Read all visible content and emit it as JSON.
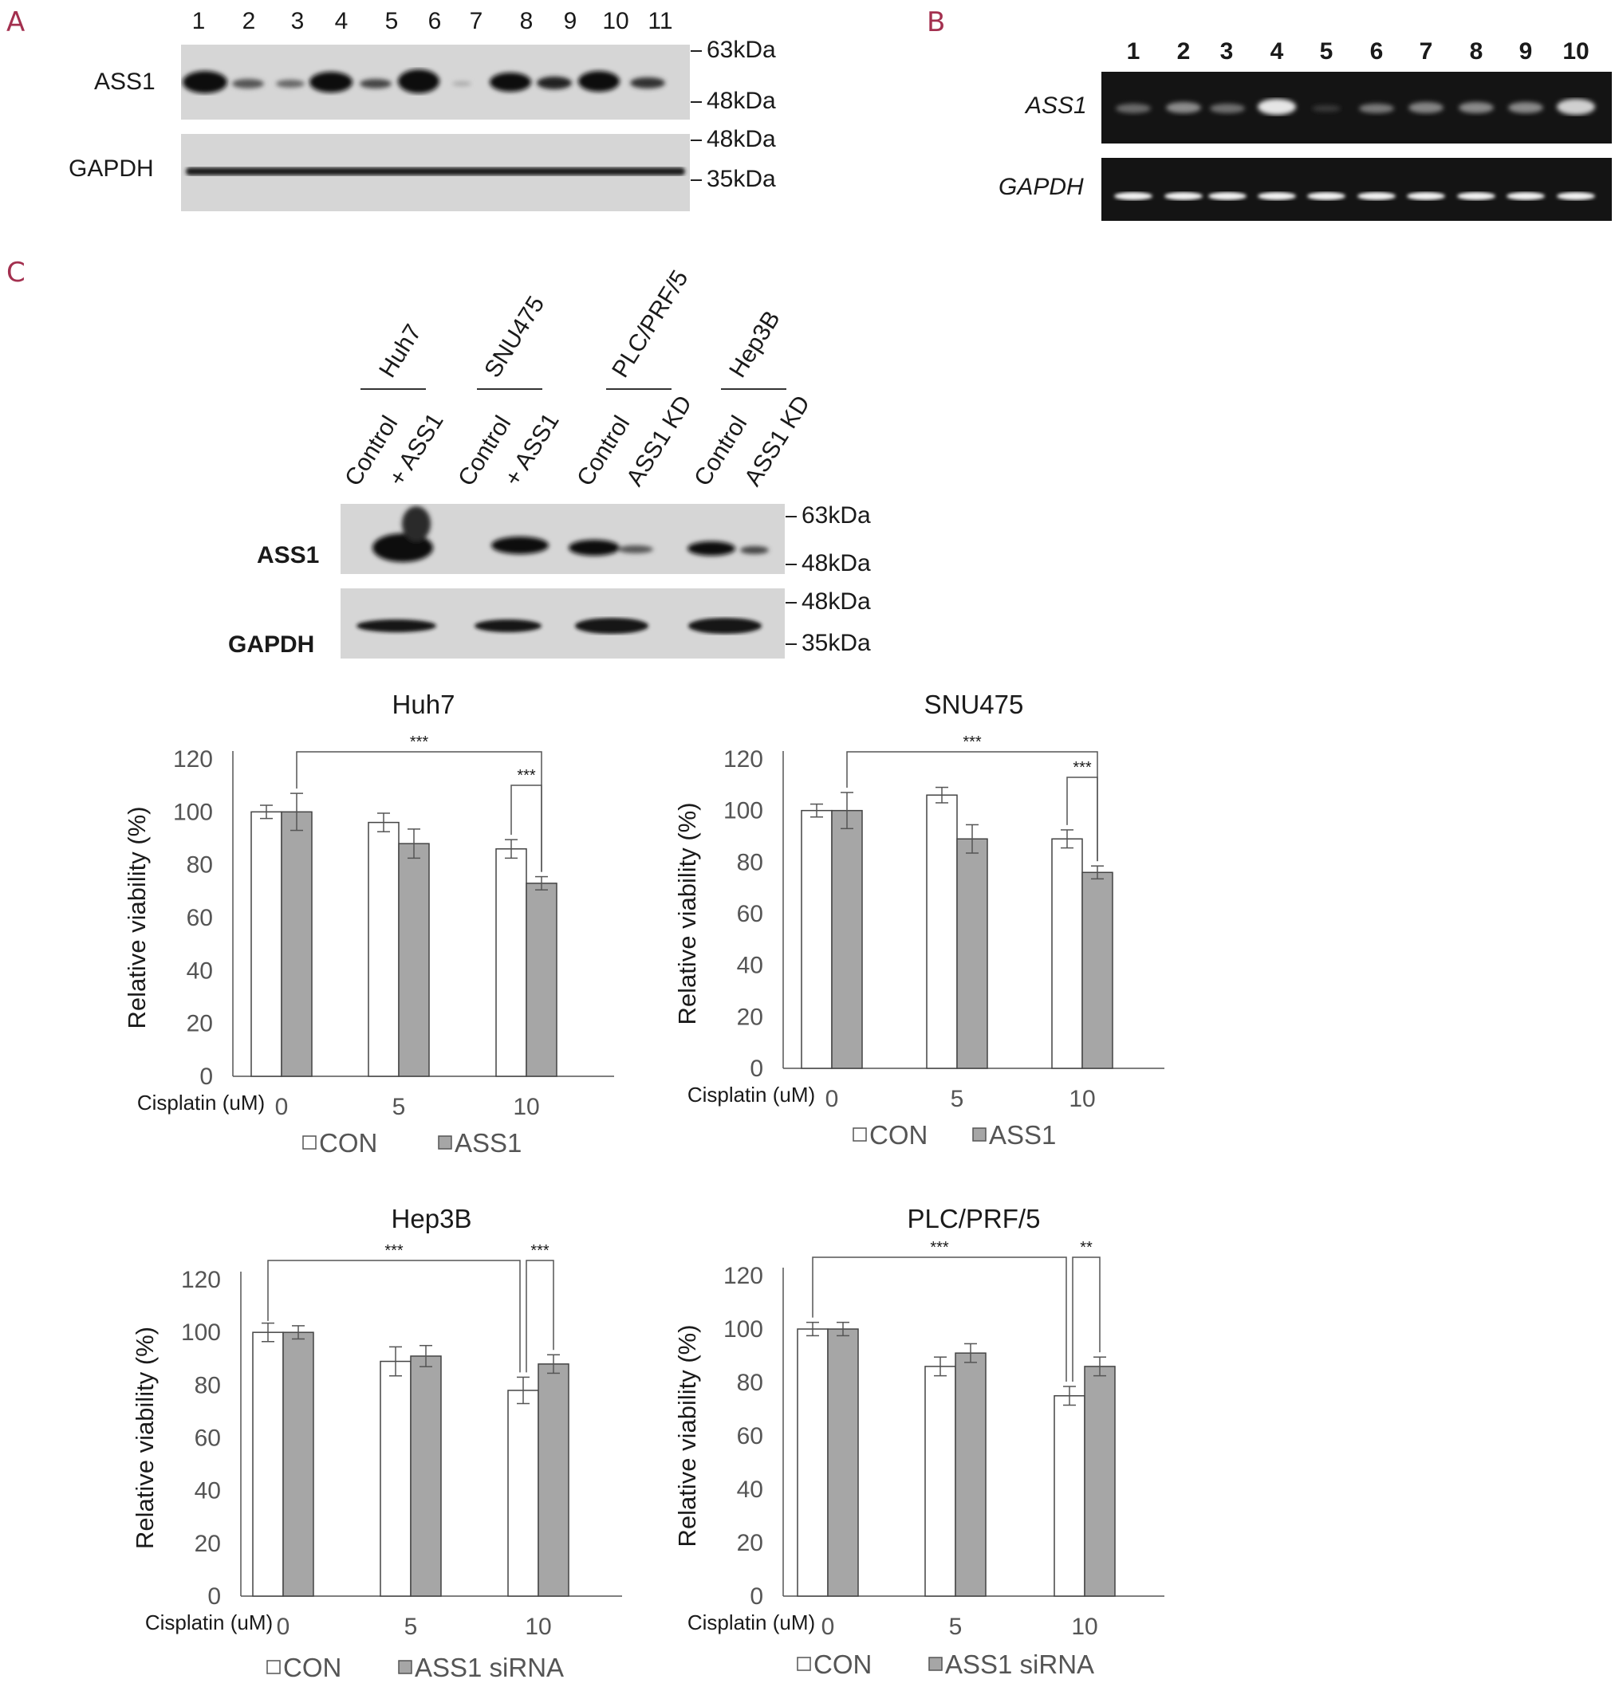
{
  "panels": {
    "a": "A",
    "b": "B",
    "c": "C"
  },
  "panel_a": {
    "lanes": [
      "1",
      "2",
      "3",
      "4",
      "5",
      "6",
      "7",
      "8",
      "9",
      "10",
      "11"
    ],
    "row1": "ASS1",
    "row2": "GAPDH",
    "markers_top": [
      "63kDa",
      "48kDa"
    ],
    "markers_bottom": [
      "48kDa",
      "35kDa"
    ]
  },
  "panel_b": {
    "lanes": [
      "1",
      "2",
      "3",
      "4",
      "5",
      "6",
      "7",
      "8",
      "9",
      "10"
    ],
    "row1": "ASS1",
    "row2": "GAPDH"
  },
  "panel_c_blot": {
    "cell_lines": [
      "Huh7",
      "SNU475",
      "PLC/PRF/5",
      "Hep3B"
    ],
    "conditions": [
      "Control",
      "+ ASS1",
      "Control",
      "+ ASS1",
      "Control",
      "ASS1 KD",
      "Control",
      "ASS1 KD"
    ],
    "row1": "ASS1",
    "row2": "GAPDH",
    "markers_top": [
      "63kDa",
      "48kDa"
    ],
    "markers_bottom": [
      "48kDa",
      "35kDa"
    ]
  },
  "chart_data": [
    {
      "type": "bar",
      "title": "Huh7",
      "ylabel": "Relative viability (%)",
      "xlabel": "Cisplatin (uM)",
      "categories": [
        "0",
        "5",
        "10"
      ],
      "ylim": [
        0,
        120
      ],
      "yticks": [
        "0",
        "20",
        "40",
        "60",
        "80",
        "100",
        "120"
      ],
      "series": [
        {
          "name": "CON",
          "values": [
            100,
            96,
            86
          ],
          "errors": [
            2.5,
            3.5,
            3.5
          ],
          "color": "#ffffff"
        },
        {
          "name": "ASS1",
          "values": [
            100,
            88,
            73
          ],
          "errors": [
            7,
            5.5,
            2.5
          ],
          "color": "#a6a6a6"
        }
      ],
      "significance": [
        "***",
        "***"
      ]
    },
    {
      "type": "bar",
      "title": "SNU475",
      "ylabel": "Relative viability (%)",
      "xlabel": "Cisplatin (uM)",
      "categories": [
        "0",
        "5",
        "10"
      ],
      "ylim": [
        0,
        120
      ],
      "yticks": [
        "0",
        "20",
        "40",
        "60",
        "80",
        "100",
        "120"
      ],
      "series": [
        {
          "name": "CON",
          "values": [
            100,
            106,
            89
          ],
          "errors": [
            2.5,
            3,
            3.5
          ],
          "color": "#ffffff"
        },
        {
          "name": "ASS1",
          "values": [
            100,
            89,
            76
          ],
          "errors": [
            7,
            5.5,
            2.5
          ],
          "color": "#a6a6a6"
        }
      ],
      "significance": [
        "***",
        "***"
      ]
    },
    {
      "type": "bar",
      "title": "Hep3B",
      "ylabel": "Relative viability (%)",
      "xlabel": "Cisplatin (uM)",
      "categories": [
        "0",
        "5",
        "10"
      ],
      "ylim": [
        0,
        120
      ],
      "yticks": [
        "0",
        "20",
        "40",
        "60",
        "80",
        "100",
        "120"
      ],
      "series": [
        {
          "name": "CON",
          "values": [
            100,
            89,
            78
          ],
          "errors": [
            3.5,
            5.5,
            5
          ],
          "color": "#ffffff"
        },
        {
          "name": "ASS1 siRNA",
          "values": [
            100,
            91,
            88
          ],
          "errors": [
            2.5,
            4,
            3.5
          ],
          "color": "#a6a6a6"
        }
      ],
      "significance": [
        "***",
        "***"
      ]
    },
    {
      "type": "bar",
      "title": "PLC/PRF/5",
      "ylabel": "Relative viability (%)",
      "xlabel": "Cisplatin (uM)",
      "categories": [
        "0",
        "5",
        "10"
      ],
      "ylim": [
        0,
        120
      ],
      "yticks": [
        "0",
        "20",
        "40",
        "60",
        "80",
        "100",
        "120"
      ],
      "series": [
        {
          "name": "CON",
          "values": [
            100,
            86,
            75
          ],
          "errors": [
            2.5,
            3.5,
            3.5
          ],
          "color": "#ffffff"
        },
        {
          "name": "ASS1 siRNA",
          "values": [
            100,
            91,
            86
          ],
          "errors": [
            2.5,
            3.5,
            3.5
          ],
          "color": "#a6a6a6"
        }
      ],
      "significance": [
        "***",
        "**"
      ]
    }
  ]
}
